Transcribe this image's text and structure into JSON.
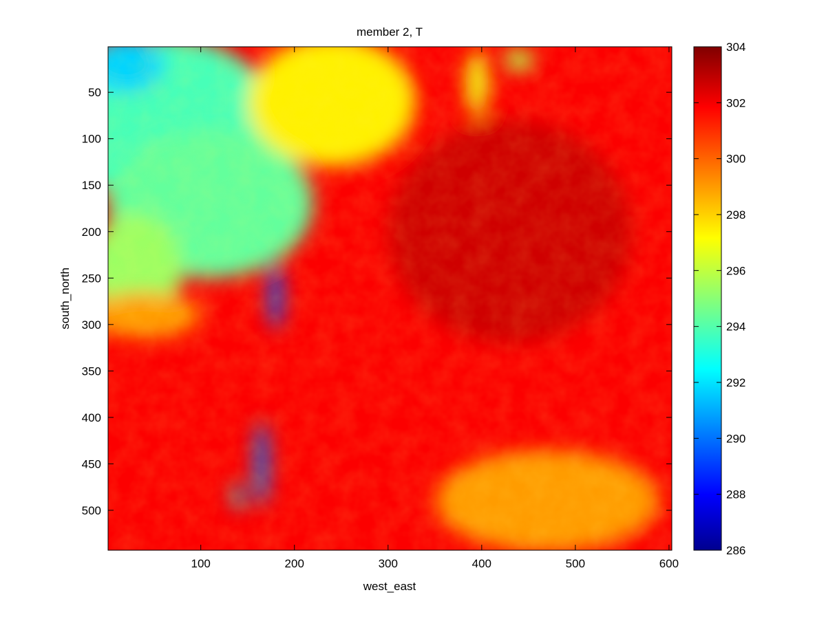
{
  "chart_data": {
    "type": "heatmap",
    "title": "member 2, T",
    "xlabel": "west_east",
    "ylabel": "south_north",
    "xlim": [
      1,
      603
    ],
    "ylim": [
      1,
      543
    ],
    "y_reversed": true,
    "xticks": [
      100,
      200,
      300,
      400,
      500,
      600
    ],
    "yticks": [
      50,
      100,
      150,
      200,
      250,
      300,
      350,
      400,
      450,
      500
    ],
    "colormap": "jet",
    "colorbar": {
      "min": 286,
      "max": 304,
      "ticks": [
        286,
        288,
        290,
        292,
        294,
        296,
        298,
        300,
        302,
        304
      ]
    },
    "background_value": 301.8,
    "field_regions": [
      {
        "label": "cool northwest plateau",
        "cx": 60,
        "cy": 80,
        "rx": 120,
        "ry": 90,
        "value": 294.0
      },
      {
        "label": "cool west highlands",
        "cx": 110,
        "cy": 170,
        "rx": 110,
        "ry": 80,
        "value": 294.5
      },
      {
        "label": "cool far west lobe",
        "cx": 30,
        "cy": 240,
        "rx": 50,
        "ry": 60,
        "value": 295.5
      },
      {
        "label": "warm transition band",
        "cx": 240,
        "cy": 60,
        "rx": 90,
        "ry": 70,
        "value": 297.5
      },
      {
        "label": "cold north corner",
        "cx": 20,
        "cy": 20,
        "rx": 40,
        "ry": 30,
        "value": 292.0
      },
      {
        "label": "lake west strip",
        "cx": 180,
        "cy": 270,
        "rx": 7,
        "ry": 35,
        "value": 290.0
      },
      {
        "label": "lake south strip",
        "cx": 165,
        "cy": 450,
        "rx": 7,
        "ry": 45,
        "value": 290.5
      },
      {
        "label": "south lake tip",
        "cx": 140,
        "cy": 485,
        "rx": 5,
        "ry": 15,
        "value": 292.0
      },
      {
        "label": "northeast cool patch",
        "cx": 395,
        "cy": 40,
        "rx": 12,
        "ry": 35,
        "value": 297.0
      },
      {
        "label": "northeast cool spot",
        "cx": 440,
        "cy": 15,
        "rx": 15,
        "ry": 12,
        "value": 296.0
      },
      {
        "label": "southeast warm cells",
        "cx": 470,
        "cy": 490,
        "rx": 120,
        "ry": 55,
        "value": 299.0
      },
      {
        "label": "southwest shore",
        "cx": 40,
        "cy": 290,
        "rx": 60,
        "ry": 25,
        "value": 299.0
      },
      {
        "label": "interior hot core",
        "cx": 430,
        "cy": 200,
        "rx": 130,
        "ry": 120,
        "value": 302.6
      }
    ]
  }
}
